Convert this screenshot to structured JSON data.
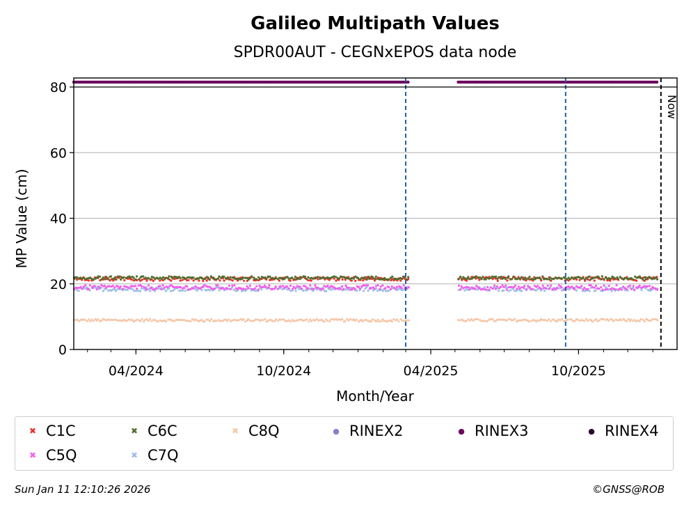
{
  "chart_data": {
    "type": "scatter",
    "title": "Galileo Multipath Values",
    "subtitle": "SPDR00AUT - CEGNxEPOS data node",
    "xlabel": "Month/Year",
    "ylabel": "MP Value (cm)",
    "xlim": [
      "2024-01-15",
      "2026-01-31"
    ],
    "ylim": [
      0,
      80
    ],
    "yticks": [
      0,
      20,
      40,
      60,
      80
    ],
    "xticks": [
      {
        "date": "2024-04-01",
        "label": "04/2024"
      },
      {
        "date": "2024-10-01",
        "label": "10/2024"
      },
      {
        "date": "2025-04-01",
        "label": "04/2025"
      },
      {
        "date": "2025-10-01",
        "label": "10/2025"
      }
    ],
    "grid": "horizontal",
    "data_gap": [
      "2025-03-05",
      "2025-05-05"
    ],
    "data_range": [
      "2024-01-15",
      "2026-01-06"
    ],
    "series": [
      {
        "name": "C1C",
        "color": "#e8322e",
        "marker": "x",
        "mean": 21.5
      },
      {
        "name": "C5Q",
        "color": "#f45cf0",
        "marker": "x",
        "mean": 18.9
      },
      {
        "name": "C6C",
        "color": "#4f6e2e",
        "marker": "x",
        "mean": 21.8
      },
      {
        "name": "C7Q",
        "color": "#9ebfe6",
        "marker": "x",
        "mean": 18.4
      },
      {
        "name": "C8Q",
        "color": "#f4c7a9",
        "marker": "x",
        "mean": 8.9
      },
      {
        "name": "RINEX2",
        "color": "#8c7fc6",
        "marker": "o"
      },
      {
        "name": "RINEX3",
        "color": "#6b0a5f",
        "marker": "o",
        "band_value": 81.5
      },
      {
        "name": "RINEX4",
        "color": "#2a0530",
        "marker": "o"
      }
    ],
    "vlines": [
      {
        "date": "2025-03-01",
        "color": "#1f5fa8",
        "style": "dashed"
      },
      {
        "date": "2025-09-15",
        "color": "#1f5fa8",
        "style": "dashed"
      },
      {
        "date": "2026-01-11",
        "color": "#000000",
        "style": "dashed",
        "label": "Now"
      }
    ],
    "legend_position": "bottom"
  },
  "footer": {
    "timestamp": "Sun Jan 11 12:10:26 2026",
    "copyright": "©GNSS@ROB"
  }
}
